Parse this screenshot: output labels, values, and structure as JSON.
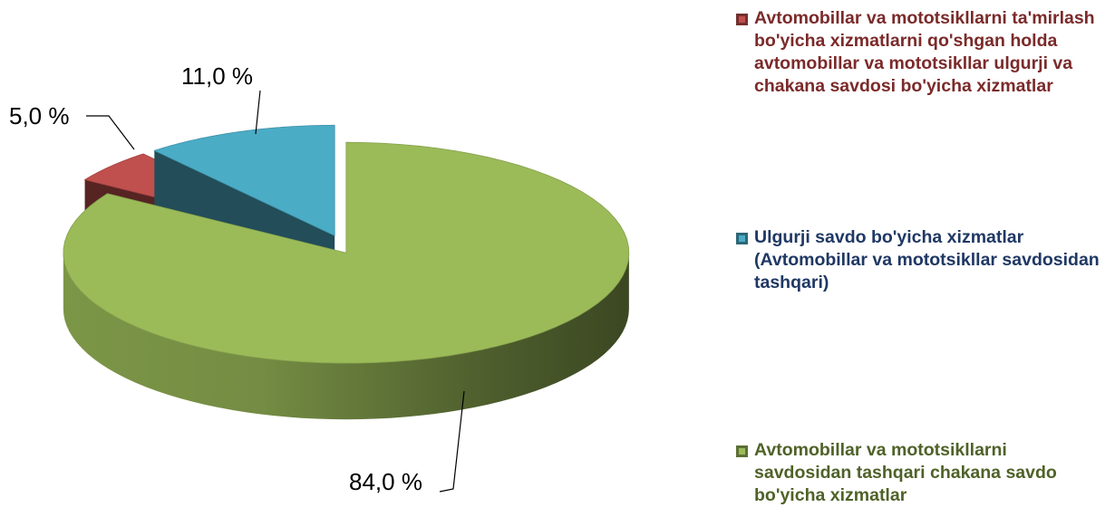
{
  "chart_data": {
    "type": "pie",
    "categories": [
      "Avtomobillar va mototsikllarni ta'mirlash bo'yicha xizmatlarni qo'shgan holda avtomobillar va mototsikllar ulgurji va chakana savdosi bo'yicha xizmatlar",
      "Ulgurji savdo bo'yicha xizmatlar (Avtomobillar va mototsikllar savdosidan tashqari)",
      "Avtomobillar va mototsikllarni savdosidan tashqari chakana savdo bo'yicha xizmatlar"
    ],
    "values": [
      5,
      11,
      84
    ],
    "value_labels": [
      "5,0 %",
      "11,0 %",
      "84,0 %"
    ],
    "colors": [
      "#c0504d",
      "#4bacc6",
      "#9bbb59"
    ],
    "legend_text_colors": [
      "#7b2a2a",
      "#1f3864",
      "#4f6228"
    ],
    "legend": "right"
  }
}
